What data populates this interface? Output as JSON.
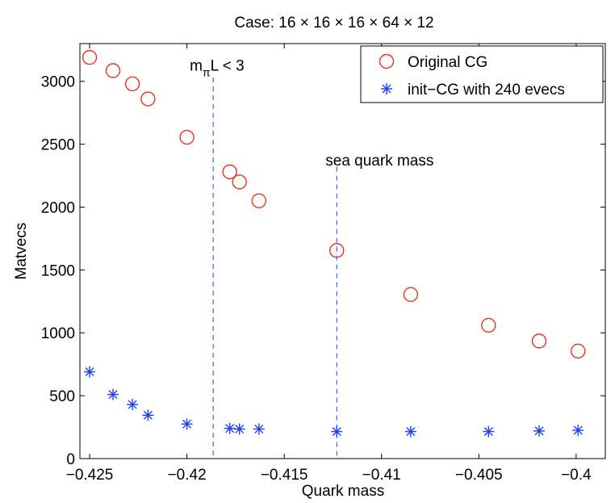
{
  "chart_data": {
    "type": "scatter",
    "title": "Case: 16 × 16 × 16 × 64 × 12",
    "xlabel": "Quark mass",
    "ylabel": "Matvecs",
    "xlim": [
      -0.4255,
      -0.3985
    ],
    "ylim": [
      0,
      3300
    ],
    "x_ticks": [
      -0.425,
      -0.42,
      -0.415,
      -0.41,
      -0.405,
      -0.4
    ],
    "x_tick_labels": [
      "−0.425",
      "−0.42",
      "−0.415",
      "−0.41",
      "−0.405",
      "−0.4"
    ],
    "y_ticks": [
      0,
      500,
      1000,
      1500,
      2000,
      2500,
      3000
    ],
    "y_tick_labels": [
      "0",
      "500",
      "1000",
      "1500",
      "2000",
      "2500",
      "3000"
    ],
    "grid": false,
    "legend_position": "top-right",
    "series": [
      {
        "name": "Original CG",
        "marker": "circle",
        "color": "#e8341c",
        "points": [
          [
            -0.425,
            3190
          ],
          [
            -0.4238,
            3085
          ],
          [
            -0.4228,
            2980
          ],
          [
            -0.422,
            2860
          ],
          [
            -0.42,
            2555
          ],
          [
            -0.4178,
            2280
          ],
          [
            -0.4173,
            2200
          ],
          [
            -0.4163,
            2050
          ],
          [
            -0.4123,
            1655
          ],
          [
            -0.4085,
            1305
          ],
          [
            -0.4045,
            1060
          ],
          [
            -0.4019,
            935
          ],
          [
            -0.3999,
            855
          ]
        ]
      },
      {
        "name": "init−CG with 240 evecs",
        "marker": "asterisk",
        "color": "#1f3ff0",
        "points": [
          [
            -0.425,
            690
          ],
          [
            -0.4238,
            510
          ],
          [
            -0.4228,
            430
          ],
          [
            -0.422,
            345
          ],
          [
            -0.42,
            275
          ],
          [
            -0.4178,
            240
          ],
          [
            -0.4173,
            235
          ],
          [
            -0.4163,
            235
          ],
          [
            -0.4123,
            215
          ],
          [
            -0.4085,
            215
          ],
          [
            -0.4045,
            215
          ],
          [
            -0.4019,
            220
          ],
          [
            -0.3999,
            225
          ]
        ]
      }
    ],
    "vertical_lines": [
      {
        "x": -0.41865,
        "color": "#1f3ff0"
      },
      {
        "x": -0.4123,
        "color": "#1f3ff0"
      }
    ],
    "annotations": [
      {
        "x": -0.41865,
        "y": 3130,
        "text": "mπL < 3"
      },
      {
        "x": -0.4123,
        "y": 2370,
        "text": "sea quark mass"
      }
    ]
  }
}
